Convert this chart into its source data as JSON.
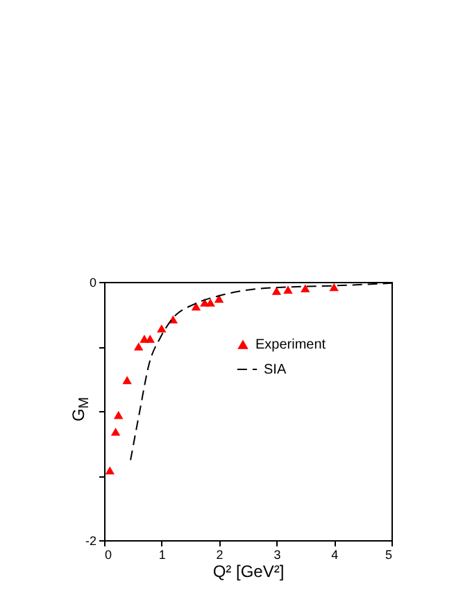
{
  "chart_data": {
    "type": "scatter",
    "xlabel": "Q²   [GeV²]",
    "ylabel": "G$_{M}$",
    "xlim": [
      0,
      5
    ],
    "xticks": [
      0,
      1,
      2,
      3,
      4,
      5
    ],
    "ylim": [
      -2,
      0
    ],
    "yticks": [
      -2,
      {
        "value": -1.5,
        "label": null
      },
      {
        "value": -1,
        "label": null
      },
      {
        "value": -0.5,
        "label": null
      },
      0
    ],
    "grid": false,
    "legend": "right",
    "series": [
      {
        "name": "Experiment",
        "marker": "triangle",
        "color": "#ff0000",
        "x": [
          0.1,
          0.2,
          0.25,
          0.4,
          0.6,
          0.7,
          0.8,
          1.0,
          1.2,
          1.6,
          1.75,
          1.85,
          2.0,
          3.0,
          3.2,
          3.5,
          4.0
        ],
        "values": [
          -1.46,
          -1.16,
          -1.03,
          -0.76,
          -0.5,
          -0.44,
          -0.44,
          -0.36,
          -0.29,
          -0.19,
          -0.16,
          -0.16,
          -0.13,
          -0.07,
          -0.06,
          -0.05,
          -0.04
        ]
      },
      {
        "name": "SIA",
        "type": "line",
        "line_style": "dashed",
        "color": "#000000",
        "x": [
          0.46,
          0.62,
          0.78,
          0.98,
          1.18,
          1.58,
          1.98,
          2.54,
          3.18,
          3.98,
          5
        ],
        "values": [
          -1.38,
          -1.0,
          -0.64,
          -0.43,
          -0.29,
          -0.17,
          -0.11,
          -0.06,
          -0.04,
          -0.03,
          -0.01
        ]
      }
    ]
  }
}
